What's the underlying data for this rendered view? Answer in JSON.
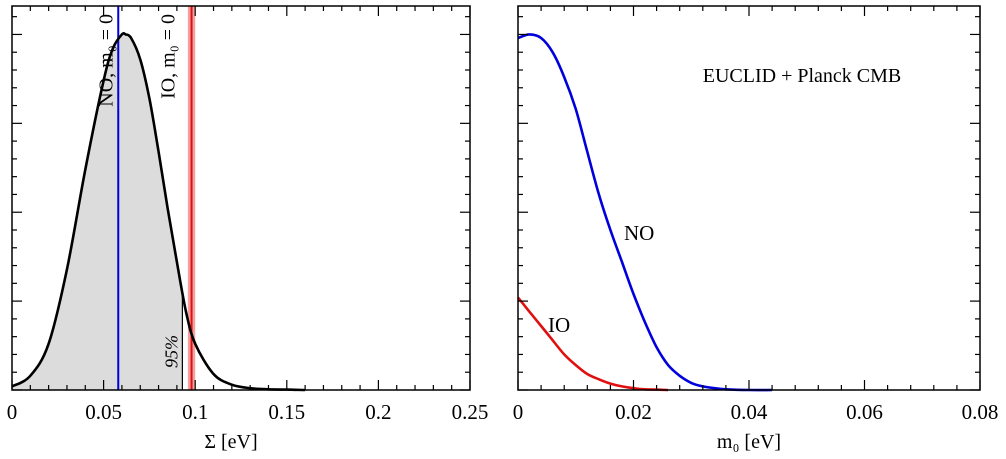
{
  "colors": {
    "black": "#000000",
    "blue": "#0000dd",
    "red": "#e01010",
    "red_band": "#f4a0a0",
    "fill_gray": "#dcdcdc"
  },
  "chart_data": [
    {
      "type": "area",
      "xlabel": "Σ [eV]",
      "xlim": [
        0,
        0.25
      ],
      "xticks": [
        0,
        0.05,
        0.1,
        0.15,
        0.2,
        0.25
      ],
      "xtick_labels": [
        "0",
        "0.05",
        "0.1",
        "0.15",
        "0.2",
        "0.25"
      ],
      "ylim": [
        0,
        1.08
      ],
      "y_ticks_labeled": false,
      "grid": false,
      "series": [
        {
          "x": [
            0,
            0.01,
            0.02,
            0.03,
            0.04,
            0.05,
            0.055,
            0.06,
            0.062,
            0.065,
            0.07,
            0.075,
            0.08,
            0.085,
            0.09,
            0.095,
            0.1,
            0.11,
            0.12,
            0.13,
            0.14,
            0.15,
            0.16
          ],
          "y": [
            0.01,
            0.04,
            0.13,
            0.34,
            0.62,
            0.87,
            0.96,
            1.0,
            1.0,
            0.99,
            0.93,
            0.82,
            0.67,
            0.51,
            0.36,
            0.22,
            0.13,
            0.045,
            0.015,
            0.005,
            0.002,
            0.001,
            0.0
          ]
        }
      ],
      "shaded_region": {
        "from": 0,
        "to": 0.093
      },
      "vlines": [
        {
          "x": 0.058,
          "label": "NO, m₀ = 0",
          "color": "#0000dd"
        },
        {
          "x": 0.098,
          "label": "IO, m₀ = 0",
          "color": "#e01010",
          "band": [
            0.096,
            0.1
          ]
        }
      ],
      "annotations": [
        "95%"
      ]
    },
    {
      "type": "line",
      "xlabel": "m₀ [eV]",
      "xlim": [
        0,
        0.08
      ],
      "xticks": [
        0,
        0.02,
        0.04,
        0.06,
        0.08
      ],
      "xtick_labels": [
        "0",
        "0.02",
        "0.04",
        "0.06",
        "0.08"
      ],
      "ylim": [
        0,
        1.08
      ],
      "y_ticks_labeled": false,
      "grid": false,
      "annotation": "EUCLID + Planck CMB",
      "series": [
        {
          "name": "NO",
          "color": "#0000dd",
          "x": [
            0,
            0.002,
            0.004,
            0.006,
            0.008,
            0.01,
            0.012,
            0.014,
            0.016,
            0.018,
            0.02,
            0.022,
            0.024,
            0.026,
            0.028,
            0.03,
            0.032,
            0.034,
            0.036,
            0.04,
            0.044
          ],
          "y": [
            0.99,
            1.0,
            0.99,
            0.95,
            0.88,
            0.79,
            0.67,
            0.55,
            0.45,
            0.36,
            0.27,
            0.19,
            0.12,
            0.07,
            0.04,
            0.02,
            0.01,
            0.005,
            0.002,
            0.0,
            0.0
          ]
        },
        {
          "name": "IO",
          "color": "#e01010",
          "x": [
            0,
            0.002,
            0.004,
            0.006,
            0.008,
            0.01,
            0.012,
            0.014,
            0.016,
            0.018,
            0.02,
            0.022,
            0.024,
            0.026
          ],
          "y": [
            0.26,
            0.22,
            0.18,
            0.14,
            0.1,
            0.07,
            0.045,
            0.03,
            0.018,
            0.01,
            0.005,
            0.002,
            0.001,
            0.0
          ]
        }
      ]
    }
  ]
}
